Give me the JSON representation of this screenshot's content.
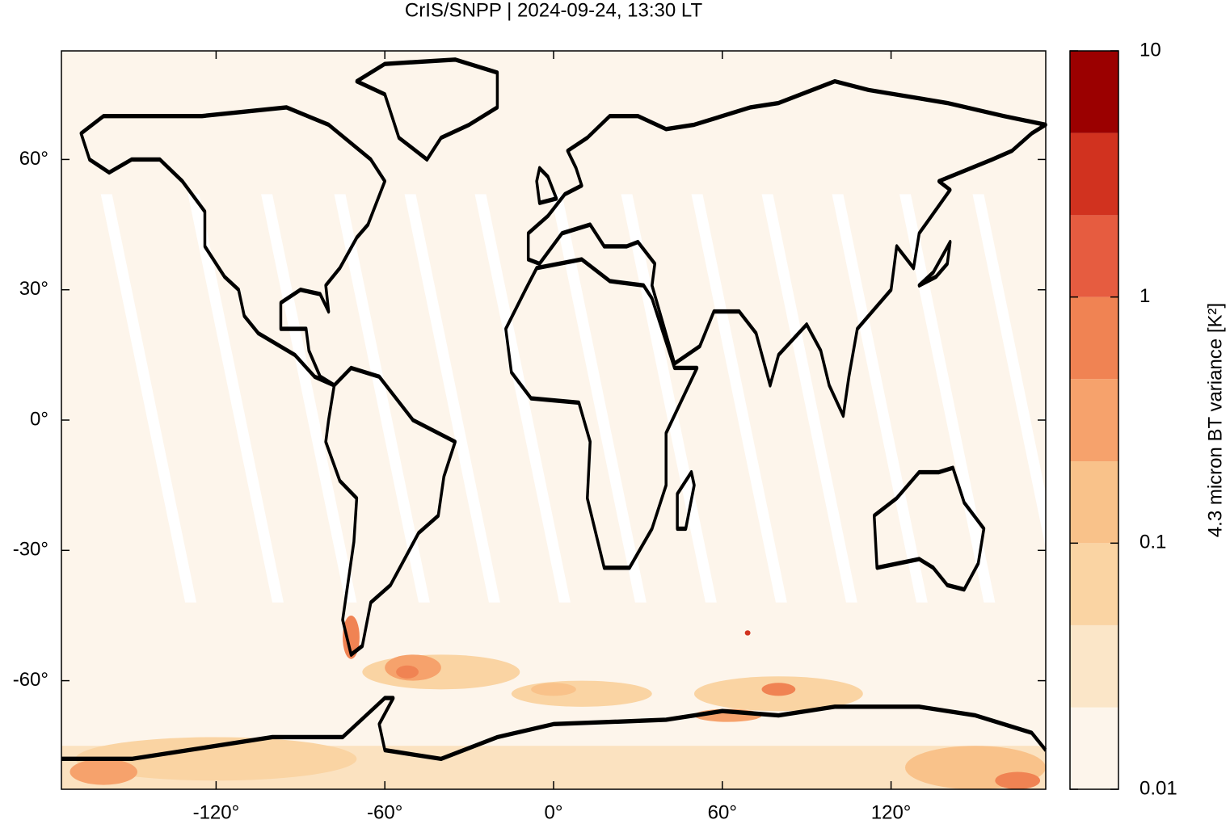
{
  "chart_data": {
    "type": "map",
    "title": "CrIS/SNPP | 2024-09-24, 13:30 LT",
    "xlim": [
      -175,
      175
    ],
    "ylim": [
      -85,
      85
    ],
    "xticks": [
      {
        "value": -120,
        "label": "-120°"
      },
      {
        "value": -60,
        "label": "-60°"
      },
      {
        "value": 0,
        "label": "0°"
      },
      {
        "value": 60,
        "label": "60°"
      },
      {
        "value": 120,
        "label": "120°"
      }
    ],
    "yticks": [
      {
        "value": -60,
        "label": "-60°"
      },
      {
        "value": -30,
        "label": "-30°"
      },
      {
        "value": 0,
        "label": "0°"
      },
      {
        "value": 30,
        "label": "30°"
      },
      {
        "value": 60,
        "label": "60°"
      }
    ],
    "colorbar": {
      "label": "4.3 micron BT variance [K²]",
      "scale": "log",
      "lim": [
        0.01,
        10
      ],
      "ticks": [
        0.01,
        0.1,
        1,
        10
      ],
      "levels": [
        0.01,
        0.0215,
        0.0464,
        0.1,
        0.215,
        0.464,
        1,
        2.15,
        4.64,
        10
      ],
      "colors": [
        "#fdf5eb",
        "#fbe6c8",
        "#fad4a3",
        "#f9c28a",
        "#f6a26c",
        "#f08353",
        "#e65c40",
        "#d1321f",
        "#9b0000"
      ]
    }
  }
}
